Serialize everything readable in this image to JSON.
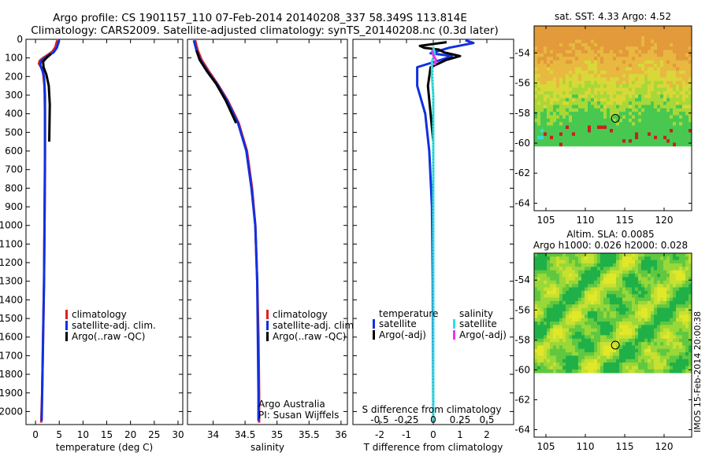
{
  "title_line1": "Argo profile: CS 1901157_110 07-Feb-2014 20140208_337 58.349S 113.814E",
  "title_line2": "Climatology: CARS2009. Satellite-adjusted climatology: synTS_20140208.nc (0.3d later)",
  "side_stamp": "IMOS 15-Feb-2014 20:00:38",
  "colors": {
    "climatology": "#e02020",
    "satellite": "#1030e0",
    "argo": "#000000",
    "sal_satellite": "#30e0e0",
    "sal_argo": "#f030f0",
    "dotted": "#666666"
  },
  "chart_data": [
    {
      "type": "line",
      "id": "temperature",
      "xlabel": "temperature (deg C)",
      "xlim": [
        -2,
        31
      ],
      "ylim": [
        2070,
        0
      ],
      "xticks": [
        0,
        5,
        10,
        15,
        20,
        25,
        30
      ],
      "xtick_labels": [
        "0",
        "5",
        "10",
        "15",
        "20",
        "25",
        "30"
      ],
      "yticks": [
        0,
        100,
        200,
        300,
        400,
        500,
        600,
        700,
        800,
        900,
        1000,
        1100,
        1200,
        1300,
        1400,
        1500,
        1600,
        1700,
        1800,
        1900,
        2000
      ],
      "ytick_labels": [
        "0",
        "100",
        "200",
        "300",
        "400",
        "500",
        "600",
        "700",
        "800",
        "900",
        "1000",
        "1100",
        "1200",
        "1300",
        "1400",
        "1500",
        "1600",
        "1700",
        "1800",
        "1900",
        "2000"
      ],
      "legend": [
        "climatology",
        "satellite-adj. clim.",
        "Argo(..raw -QC)"
      ],
      "series": [
        {
          "name": "climatology",
          "colorKey": "climatology",
          "width": 3,
          "points": [
            [
              4.6,
              5
            ],
            [
              4.4,
              20
            ],
            [
              4.2,
              40
            ],
            [
              3.6,
              65
            ],
            [
              2.5,
              85
            ],
            [
              1.6,
              100
            ],
            [
              0.9,
              115
            ],
            [
              0.7,
              130
            ],
            [
              1.2,
              150
            ],
            [
              1.6,
              180
            ],
            [
              1.9,
              250
            ],
            [
              2.0,
              400
            ],
            [
              2.0,
              700
            ],
            [
              1.9,
              1000
            ],
            [
              1.8,
              1300
            ],
            [
              1.6,
              1600
            ],
            [
              1.4,
              1900
            ],
            [
              1.2,
              2060
            ]
          ]
        },
        {
          "name": "satellite-adj. clim.",
          "colorKey": "satellite",
          "width": 3,
          "points": [
            [
              5.0,
              5
            ],
            [
              4.8,
              20
            ],
            [
              4.5,
              45
            ],
            [
              3.8,
              70
            ],
            [
              2.6,
              90
            ],
            [
              1.7,
              105
            ],
            [
              1.1,
              120
            ],
            [
              1.0,
              140
            ],
            [
              1.5,
              170
            ],
            [
              1.8,
              200
            ],
            [
              2.0,
              300
            ],
            [
              2.0,
              600
            ],
            [
              1.9,
              1000
            ],
            [
              1.8,
              1300
            ],
            [
              1.6,
              1600
            ],
            [
              1.4,
              1900
            ],
            [
              1.3,
              2050
            ]
          ]
        },
        {
          "name": "Argo(..raw -QC)",
          "colorKey": "argo",
          "width": 3,
          "points": [
            [
              3.2,
              80
            ],
            [
              2.3,
              100
            ],
            [
              1.6,
              120
            ],
            [
              1.7,
              150
            ],
            [
              2.3,
              190
            ],
            [
              2.8,
              250
            ],
            [
              3.0,
              350
            ],
            [
              2.9,
              550
            ]
          ]
        }
      ]
    },
    {
      "type": "line",
      "id": "salinity",
      "xlabel": "salinity",
      "xlim": [
        33.6,
        36.1
      ],
      "ylim": [
        2070,
        0
      ],
      "xticks": [
        34,
        34.5,
        35,
        35.5,
        36
      ],
      "xtick_labels": [
        "34",
        "34.5",
        "35",
        "35.5",
        "36"
      ],
      "legend": [
        "climatology",
        "satellite-adj. clim.",
        "Argo(..raw -QC)"
      ],
      "annotation": [
        "Argo Australia",
        "PI: Susan Wijffels"
      ],
      "series": [
        {
          "name": "climatology",
          "colorKey": "climatology",
          "width": 3,
          "points": [
            [
              33.72,
              5
            ],
            [
              33.76,
              60
            ],
            [
              33.82,
              110
            ],
            [
              33.93,
              170
            ],
            [
              34.07,
              240
            ],
            [
              34.23,
              330
            ],
            [
              34.4,
              450
            ],
            [
              34.53,
              600
            ],
            [
              34.61,
              800
            ],
            [
              34.66,
              1000
            ],
            [
              34.69,
              1300
            ],
            [
              34.71,
              1600
            ],
            [
              34.72,
              1900
            ],
            [
              34.72,
              2060
            ]
          ]
        },
        {
          "name": "satellite-adj. clim.",
          "colorKey": "satellite",
          "width": 3,
          "points": [
            [
              33.7,
              5
            ],
            [
              33.74,
              60
            ],
            [
              33.8,
              110
            ],
            [
              33.91,
              170
            ],
            [
              34.06,
              240
            ],
            [
              34.22,
              330
            ],
            [
              34.39,
              450
            ],
            [
              34.52,
              600
            ],
            [
              34.6,
              800
            ],
            [
              34.66,
              1000
            ],
            [
              34.69,
              1300
            ],
            [
              34.7,
              1600
            ],
            [
              34.71,
              1900
            ],
            [
              34.71,
              2050
            ]
          ]
        },
        {
          "name": "Argo(..raw -QC)",
          "colorKey": "argo",
          "width": 3,
          "points": [
            [
              33.74,
              60
            ],
            [
              33.79,
              110
            ],
            [
              33.9,
              170
            ],
            [
              34.05,
              240
            ],
            [
              34.2,
              330
            ],
            [
              34.36,
              450
            ]
          ]
        }
      ]
    },
    {
      "type": "line",
      "id": "difference",
      "xlabel": "T difference from climatology",
      "s_label": "S difference from climatology",
      "xlim": [
        -3,
        3
      ],
      "ylim": [
        2070,
        0
      ],
      "xticks": [
        -2,
        -1,
        0,
        1,
        2
      ],
      "xtick_labels": [
        "-2",
        "-1",
        "0",
        "1",
        "2"
      ],
      "s_ticks": [
        -0.5,
        -0.25,
        0,
        0.25,
        0.5
      ],
      "s_tick_labels": [
        "-0.5",
        "-0.25",
        "0",
        "0.25",
        "0.5"
      ],
      "legend_temperature": {
        "title": "temperature",
        "items": [
          "satellite",
          "Argo(-adj)"
        ]
      },
      "legend_salinity": {
        "title": "salinity",
        "items": [
          "satellite",
          "Argo(-adj)"
        ]
      },
      "series": [
        {
          "name": "temperature satellite",
          "colorKey": "satellite",
          "width": 3,
          "points": [
            [
              1.2,
              5
            ],
            [
              1.5,
              20
            ],
            [
              0.6,
              45
            ],
            [
              -0.1,
              75
            ],
            [
              0.7,
              90
            ],
            [
              0.3,
              110
            ],
            [
              -0.6,
              150
            ],
            [
              -0.6,
              250
            ],
            [
              -0.3,
              400
            ],
            [
              -0.15,
              600
            ],
            [
              -0.05,
              900
            ],
            [
              -0.02,
              1300
            ],
            [
              0.0,
              2050
            ]
          ]
        },
        {
          "name": "temperature Argo(-adj)",
          "colorKey": "argo",
          "width": 3,
          "points": [
            [
              0.5,
              15
            ],
            [
              -0.5,
              35
            ],
            [
              -0.35,
              45
            ],
            [
              0.2,
              55
            ],
            [
              0.4,
              70
            ],
            [
              1.0,
              90
            ],
            [
              0.5,
              110
            ],
            [
              -0.1,
              150
            ],
            [
              -0.2,
              250
            ],
            [
              -0.1,
              400
            ],
            [
              0.0,
              550
            ]
          ]
        },
        {
          "name": "salinity satellite",
          "colorKey": "sal_satellite",
          "width": 3,
          "points": [
            [
              0.0,
              40
            ],
            [
              0.05,
              80
            ],
            [
              -0.05,
              120
            ],
            [
              -0.05,
              200
            ],
            [
              0.0,
              300
            ],
            [
              0.0,
              600
            ],
            [
              0.0,
              1000
            ],
            [
              0.0,
              1500
            ],
            [
              0.0,
              2050
            ]
          ]
        },
        {
          "name": "salinity Argo(-adj)",
          "colorKey": "sal_argo",
          "width": 3,
          "points": [
            [
              -0.05,
              60
            ],
            [
              0.0,
              85
            ],
            [
              0.1,
              110
            ],
            [
              0.05,
              140
            ]
          ]
        }
      ]
    },
    {
      "type": "heatmap",
      "id": "sst-map",
      "title": "sat. SST: 4.33 Argo: 4.52",
      "xticks": [
        105,
        110,
        115,
        120
      ],
      "xtick_labels": [
        "105",
        "110",
        "115",
        "120"
      ],
      "yticks": [
        -54,
        -56,
        -58,
        -60,
        -62,
        -64
      ],
      "ytick_labels": [
        "-54",
        "-56",
        "-58",
        "-60",
        "-62",
        "-64"
      ],
      "xlim": [
        103.5,
        123.5
      ],
      "ylim": [
        -64.5,
        -52.2
      ],
      "data_bottom": -60.2,
      "marker": [
        113.814,
        -58.349
      ]
    },
    {
      "type": "heatmap",
      "id": "sla-map",
      "title_line1": "Altim. SLA: 0.0085",
      "title_line2": "Argo h1000: 0.026 h2000: 0.028",
      "xticks": [
        105,
        110,
        115,
        120
      ],
      "xtick_labels": [
        "105",
        "110",
        "115",
        "120"
      ],
      "yticks": [
        -54,
        -56,
        -58,
        -60,
        -62,
        -64
      ],
      "ytick_labels": [
        "-54",
        "-56",
        "-58",
        "-60",
        "-62",
        "-64"
      ],
      "xlim": [
        103.5,
        123.5
      ],
      "ylim": [
        -64.5,
        -52.2
      ],
      "data_bottom": -60.2,
      "marker": [
        113.814,
        -58.349
      ]
    }
  ]
}
